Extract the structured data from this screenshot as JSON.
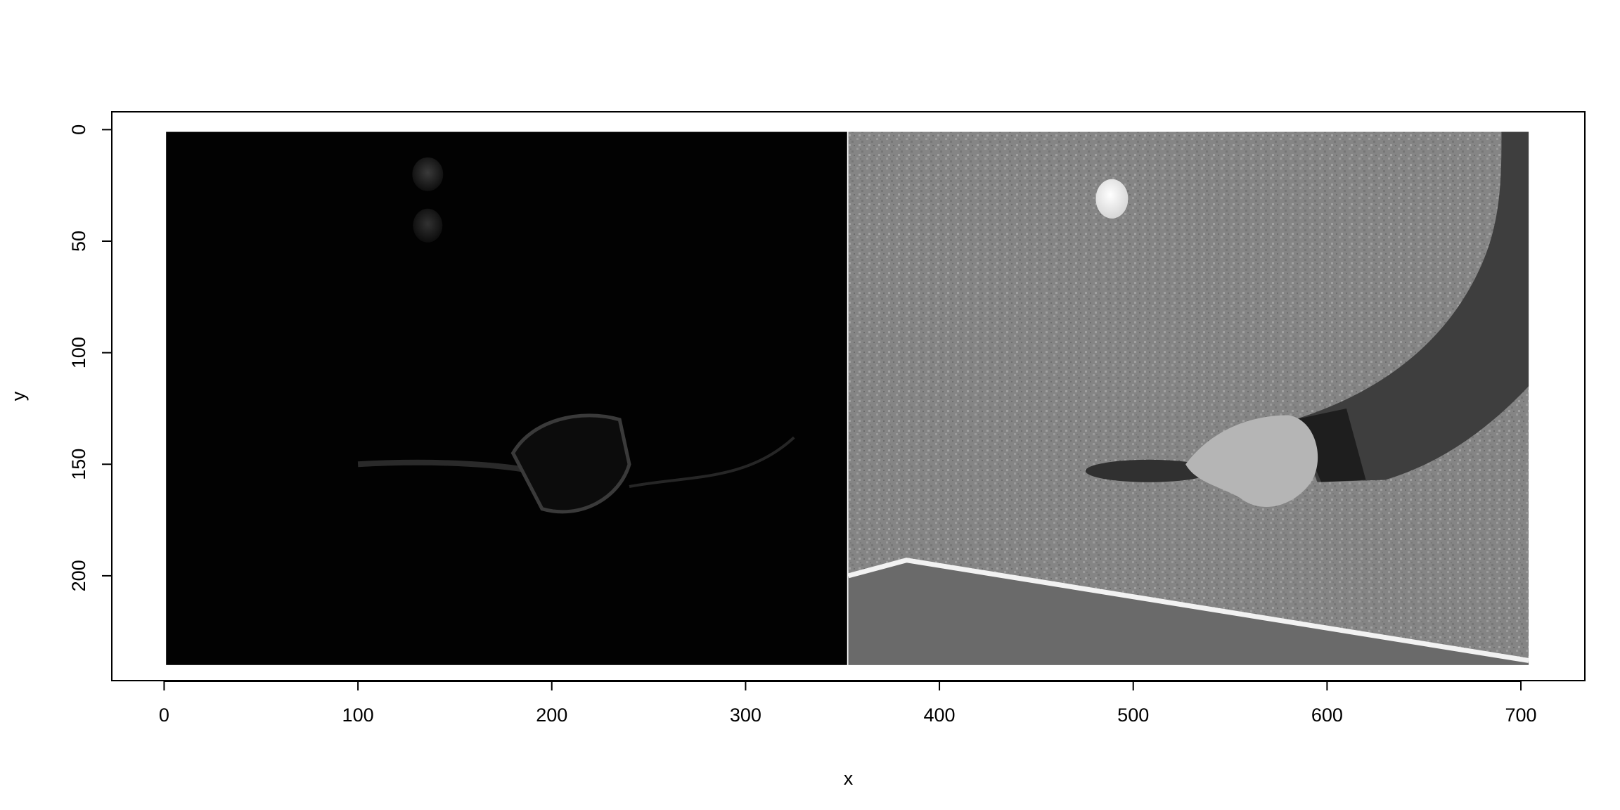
{
  "chart_data": {
    "type": "image",
    "xlabel": "x",
    "ylabel": "y",
    "xlim": [
      -27,
      733
    ],
    "ylim": [
      247,
      -8
    ],
    "y_reversed": true,
    "x_ticks": [
      0,
      100,
      200,
      300,
      400,
      500,
      600,
      700
    ],
    "y_ticks": [
      0,
      50,
      100,
      150,
      200
    ],
    "grid": false,
    "legend": "none",
    "image_extent": {
      "x": [
        1,
        704
      ],
      "y": [
        1,
        240
      ]
    },
    "panels": [
      {
        "name": "left-panel",
        "x_range": [
          1,
          352
        ],
        "description_colors": {
          "background": "#020202"
        },
        "content": "dark difference image with faint ball and hand holding paddle"
      },
      {
        "name": "right-panel",
        "x_range": [
          353,
          704
        ],
        "description_colors": {
          "background": "#858585",
          "table": "#6a6a6a",
          "table_edge": "#f2f2f2",
          "sleeve": "#3e3e3e",
          "hand": "#b5b5b5",
          "ball": "#ececec"
        },
        "content": "grayscale frame: ball, hand holding paddle, arm, table edge"
      }
    ]
  },
  "colors": {
    "axis": "#000000",
    "background": "#ffffff"
  }
}
